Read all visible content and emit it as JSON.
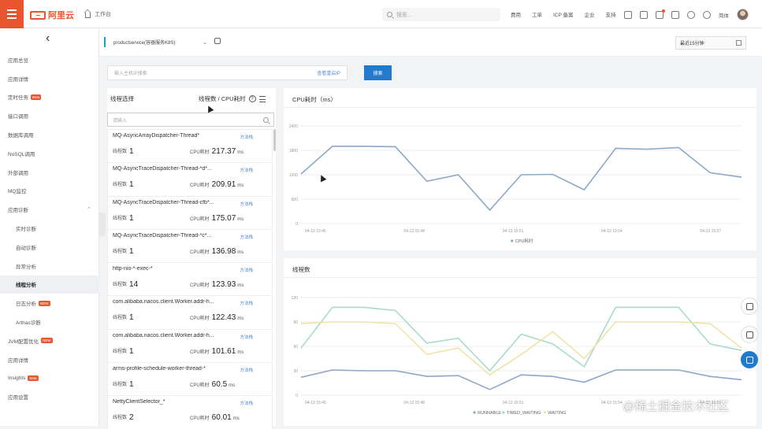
{
  "topbar": {
    "logo": "阿里云",
    "workbench": "工作台",
    "search_placeholder": "搜索...",
    "links": [
      "费用",
      "工单",
      "ICP 备案",
      "企业",
      "支持"
    ],
    "user": "简体"
  },
  "sidebar": {
    "items": [
      {
        "label": "应用总览",
        "sub": false
      },
      {
        "label": "应用详情",
        "sub": false
      },
      {
        "label": "定时任务",
        "sub": false,
        "badge": "Beta"
      },
      {
        "label": "接口调用",
        "sub": false
      },
      {
        "label": "数据库调用",
        "sub": false
      },
      {
        "label": "NoSQL调用",
        "sub": false
      },
      {
        "label": "外部调用",
        "sub": false
      },
      {
        "label": "MQ监控",
        "sub": false
      },
      {
        "label": "应用诊断",
        "sub": false,
        "expanded": true
      },
      {
        "label": "实时诊断",
        "sub": true
      },
      {
        "label": "自动诊断",
        "sub": true
      },
      {
        "label": "异常分析",
        "sub": true
      },
      {
        "label": "线程分析",
        "sub": true,
        "active": true
      },
      {
        "label": "日志分析",
        "sub": true,
        "badge": "NEW"
      },
      {
        "label": "Arthas诊断",
        "sub": true
      },
      {
        "label": "JVM配置优化",
        "sub": false,
        "badge": "NEW"
      },
      {
        "label": "应用详情",
        "sub": false
      },
      {
        "label": "Insights",
        "sub": false,
        "badge": "Beta"
      },
      {
        "label": "应用设置",
        "sub": false
      }
    ]
  },
  "service": {
    "selected": "productservice(容器服务K8S)",
    "time_range": "最近15分钟"
  },
  "filter": {
    "ip_placeholder": "输入主机IP搜索",
    "ip_link": "查看重启IP",
    "search_button": "搜索"
  },
  "thread_panel": {
    "title": "线程选择",
    "sort_label": "线程数 / CPU耗时",
    "search_placeholder": "请输入",
    "method_link": "方法栈",
    "count_label": "线程数",
    "cpu_label": "CPU耗时",
    "unit": "ms",
    "threads": [
      {
        "name": "MQ-AsyncArrayDispatcher-Thread*",
        "count": "1",
        "cpu": "217.37"
      },
      {
        "name": "MQ-AsyncTraceDispatcher-Thread-*d*...",
        "count": "1",
        "cpu": "209.91"
      },
      {
        "name": "MQ-AsyncTraceDispatcher-Thread-cfb*...",
        "count": "1",
        "cpu": "175.07"
      },
      {
        "name": "MQ-AsyncTraceDispatcher-Thread-*c*...",
        "count": "1",
        "cpu": "136.98"
      },
      {
        "name": "http-nio-*-exec-*",
        "count": "14",
        "cpu": "123.93"
      },
      {
        "name": "com.alibaba.nacos.client.Worker.addr-h...",
        "count": "1",
        "cpu": "122.43"
      },
      {
        "name": "com.alibaba.nacos.client.Worker.addr-h...",
        "count": "1",
        "cpu": "101.61"
      },
      {
        "name": "arms-profile-schedule-worker-thread-*",
        "count": "1",
        "cpu": "60.5"
      },
      {
        "name": "NettyClientSelector_*",
        "count": "2",
        "cpu": "60.01"
      }
    ]
  },
  "chart_data": [
    {
      "type": "line",
      "title": "CPU耗时（ms）",
      "x_ticks": [
        "04-13 15:45",
        "04-13 15:48",
        "04-13 15:51",
        "04-13 15:54",
        "04-13 15:57"
      ],
      "ylim": [
        0,
        2400
      ],
      "y_ticks": [
        "0",
        "600",
        "1200",
        "1800",
        "2400"
      ],
      "series": [
        {
          "name": "CPU耗时",
          "color": "#8aa8c7",
          "values": [
            1220,
            1900,
            1900,
            1890,
            1040,
            1200,
            330,
            1200,
            1210,
            830,
            1850,
            1830,
            1870,
            1250,
            1140
          ]
        }
      ]
    },
    {
      "type": "line",
      "title": "线程数",
      "x_ticks": [
        "04-13 15:45",
        "04-13 15:48",
        "04-13 15:51",
        "04-13 15:54",
        "04-13 15:57"
      ],
      "ylim": [
        0,
        120
      ],
      "y_ticks": [
        "0",
        "30",
        "60",
        "90",
        "120"
      ],
      "series": [
        {
          "name": "RUNNABLE",
          "color": "#8fa6c9",
          "values": [
            22,
            31,
            30,
            30,
            23,
            24,
            7,
            25,
            23,
            16,
            31,
            31,
            31,
            23,
            19
          ]
        },
        {
          "name": "TIMED_WAITING",
          "color": "#a8dcc7",
          "values": [
            58,
            108,
            108,
            104,
            64,
            70,
            30,
            75,
            63,
            35,
            108,
            108,
            108,
            63,
            55
          ]
        },
        {
          "name": "WAITING",
          "color": "#f0e3a6",
          "values": [
            88,
            90,
            90,
            88,
            50,
            58,
            25,
            50,
            78,
            45,
            90,
            90,
            90,
            88,
            58
          ]
        }
      ]
    }
  ],
  "watermark": "@稀土掘金技术社区"
}
